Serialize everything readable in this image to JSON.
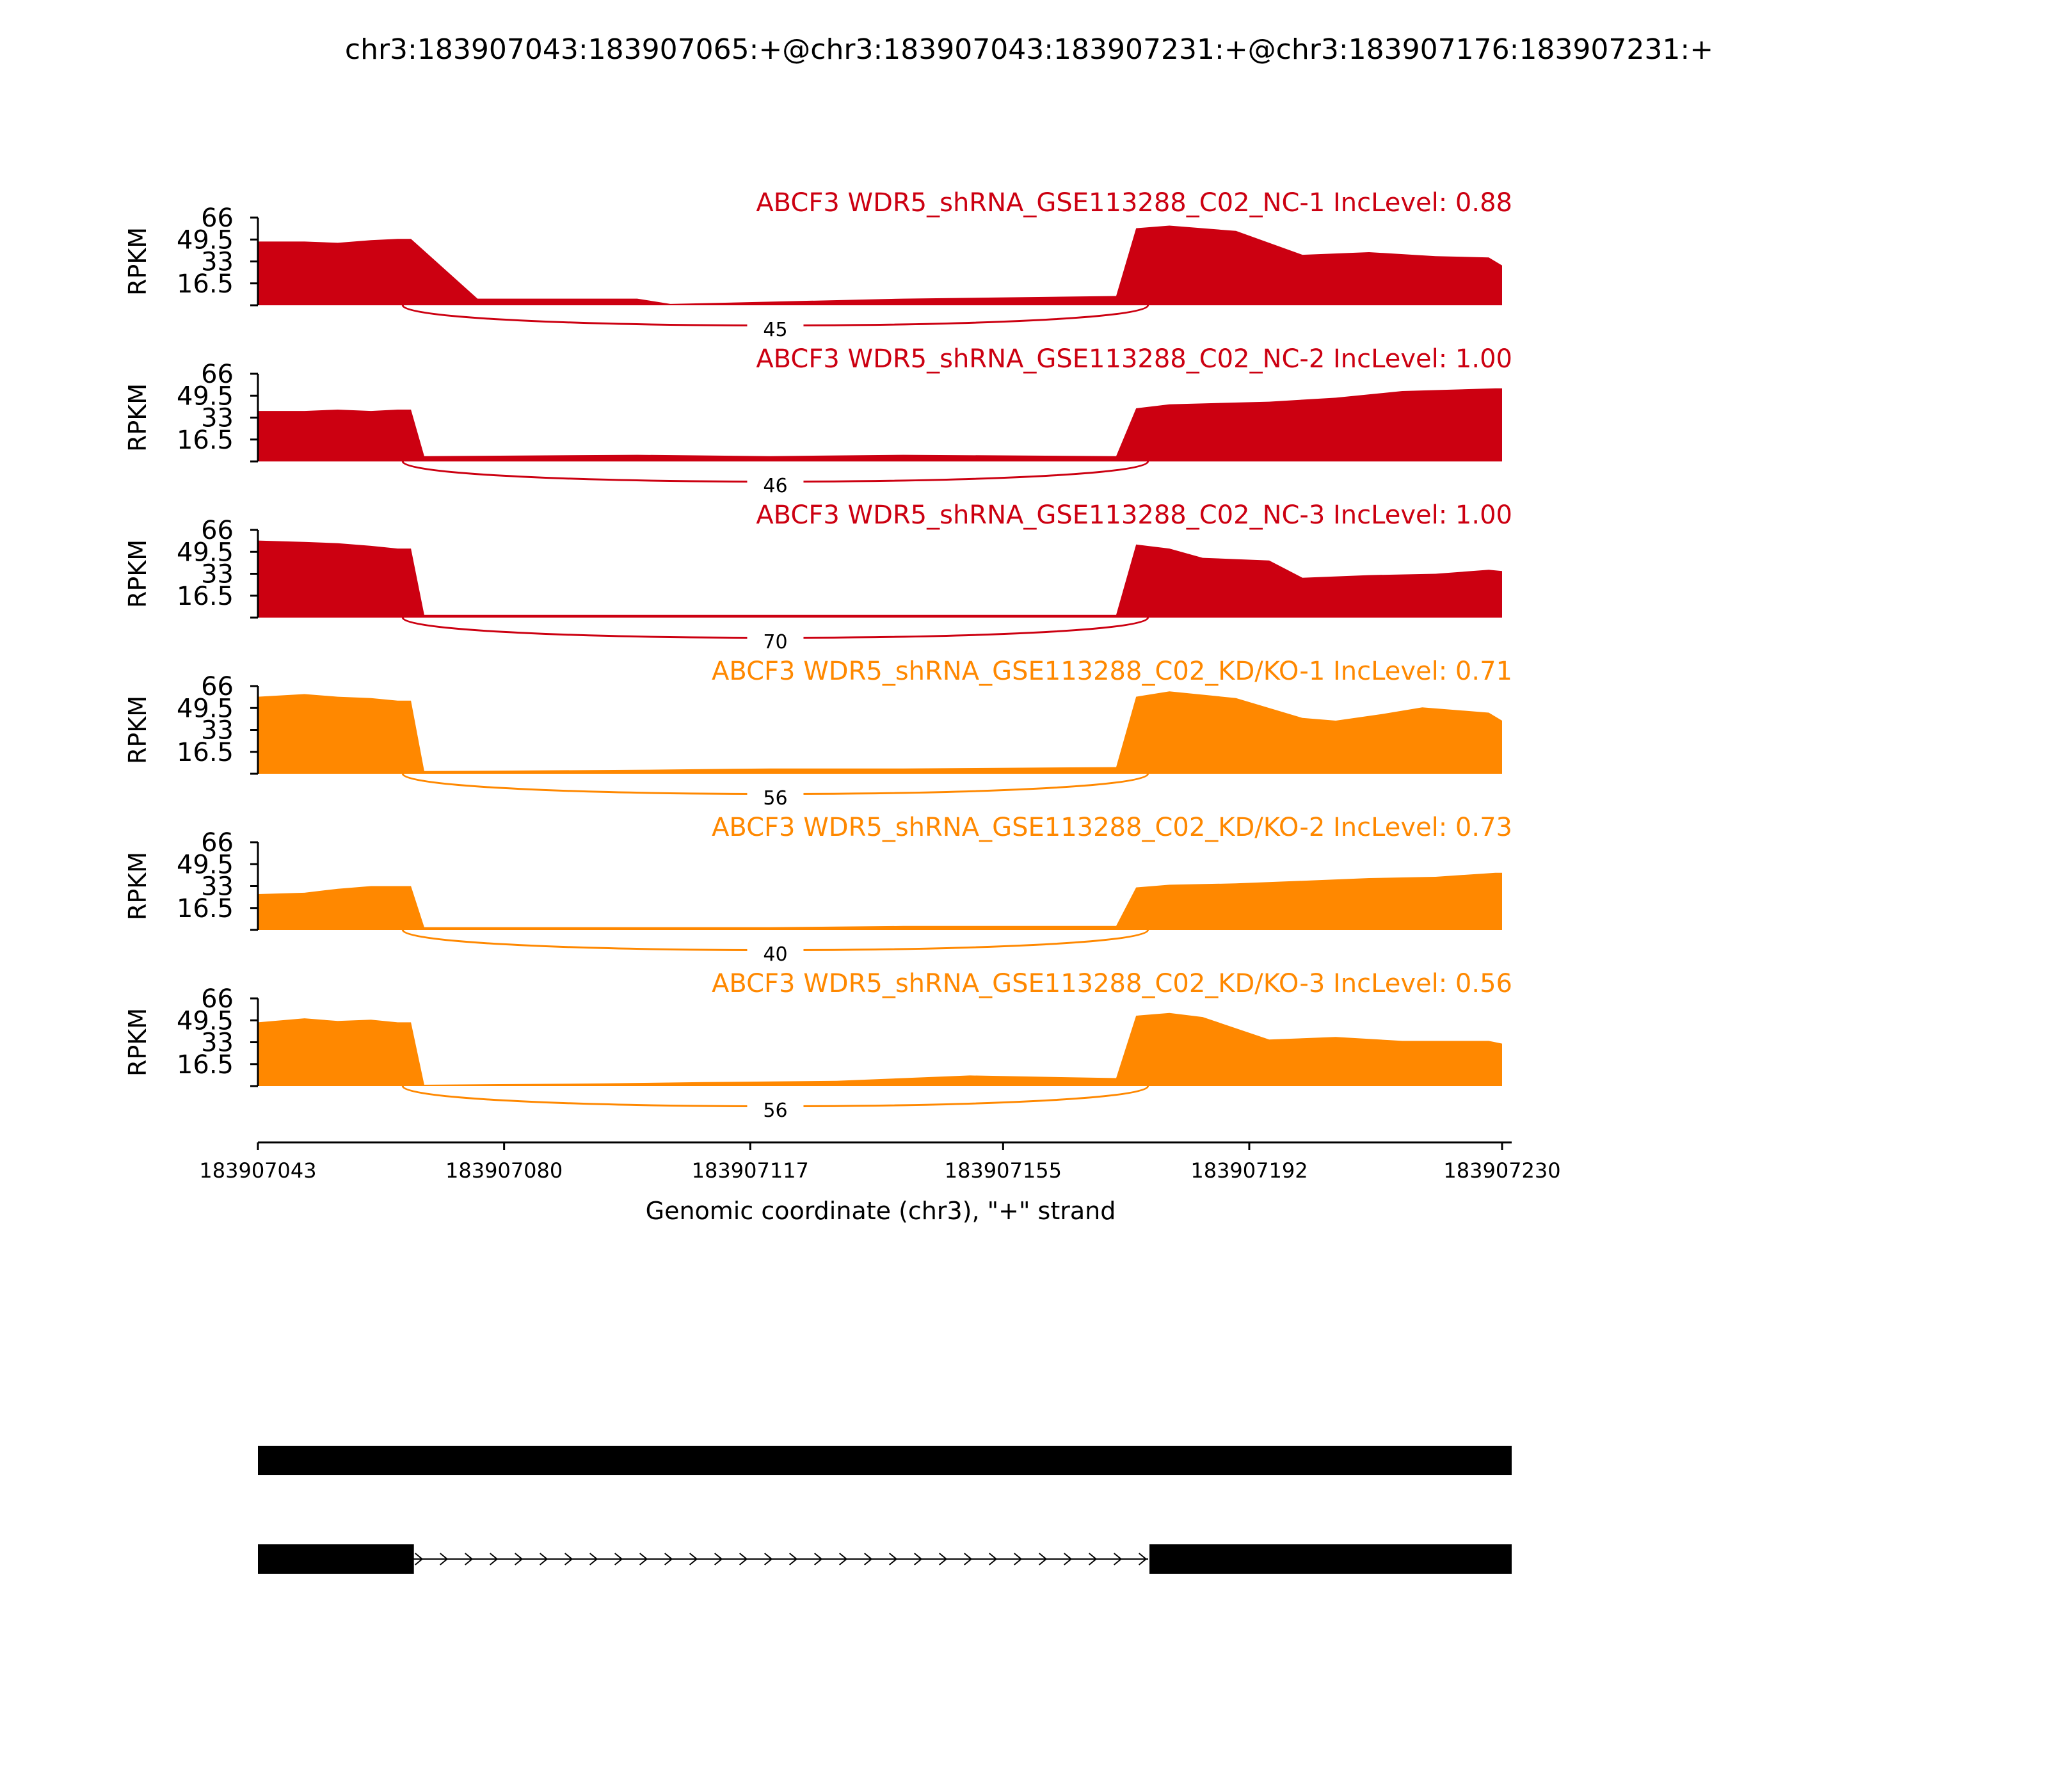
{
  "chart_data": {
    "type": "area",
    "title": "chr3:183907043:183907065:+@chr3:183907043:183907231:+@chr3:183907176:183907231:+",
    "xlabel": "Genomic coordinate (chr3), \"+\" strand",
    "xlim": [
      183907043,
      183907230
    ],
    "xticks": [
      183907043,
      183907080,
      183907117,
      183907155,
      183907192,
      183907230
    ],
    "ylabel": "RPKM",
    "ylim": [
      0,
      66
    ],
    "yticks": [
      16.5,
      33,
      49.5,
      66
    ],
    "exon1_end": 183907064,
    "exon2_start": 183907176,
    "series": [
      {
        "name": "ABCF3 WDR5_shRNA_GSE113288_C02_NC-1 IncLevel: 0.88",
        "color": "#cc0011",
        "junction_count": "45",
        "profile": [
          [
            183907043,
            48
          ],
          [
            183907050,
            48
          ],
          [
            183907055,
            47
          ],
          [
            183907060,
            49
          ],
          [
            183907064,
            50
          ],
          [
            183907066,
            50
          ],
          [
            183907076,
            5
          ],
          [
            183907100,
            5
          ],
          [
            183907105,
            1
          ],
          [
            183907140,
            5
          ],
          [
            183907172,
            7
          ],
          [
            183907175,
            58
          ],
          [
            183907180,
            60
          ],
          [
            183907190,
            56
          ],
          [
            183907200,
            38
          ],
          [
            183907210,
            40
          ],
          [
            183907220,
            37
          ],
          [
            183907228,
            36
          ],
          [
            183907230,
            30
          ]
        ]
      },
      {
        "name": "ABCF3 WDR5_shRNA_GSE113288_C02_NC-2 IncLevel: 1.00",
        "color": "#cc0011",
        "junction_count": "46",
        "profile": [
          [
            183907043,
            38
          ],
          [
            183907050,
            38
          ],
          [
            183907055,
            39
          ],
          [
            183907060,
            38
          ],
          [
            183907064,
            39
          ],
          [
            183907066,
            39
          ],
          [
            183907068,
            4
          ],
          [
            183907100,
            5
          ],
          [
            183907120,
            4
          ],
          [
            183907140,
            5
          ],
          [
            183907172,
            4
          ],
          [
            183907175,
            40
          ],
          [
            183907180,
            43
          ],
          [
            183907195,
            45
          ],
          [
            183907205,
            48
          ],
          [
            183907215,
            53
          ],
          [
            183907229,
            55
          ],
          [
            183907230,
            55
          ]
        ]
      },
      {
        "name": "ABCF3 WDR5_shRNA_GSE113288_C02_NC-3 IncLevel: 1.00",
        "color": "#cc0011",
        "junction_count": "70",
        "profile": [
          [
            183907043,
            58
          ],
          [
            183907050,
            57
          ],
          [
            183907055,
            56
          ],
          [
            183907060,
            54
          ],
          [
            183907064,
            52
          ],
          [
            183907066,
            52
          ],
          [
            183907068,
            2
          ],
          [
            183907100,
            2
          ],
          [
            183907120,
            2
          ],
          [
            183907140,
            2
          ],
          [
            183907172,
            2
          ],
          [
            183907175,
            55
          ],
          [
            183907180,
            52
          ],
          [
            183907185,
            45
          ],
          [
            183907195,
            43
          ],
          [
            183907200,
            30
          ],
          [
            183907210,
            32
          ],
          [
            183907220,
            33
          ],
          [
            183907228,
            36
          ],
          [
            183907230,
            35
          ]
        ]
      },
      {
        "name": "ABCF3 WDR5_shRNA_GSE113288_C02_KD/KO-1 IncLevel: 0.71",
        "color": "#ff8800",
        "junction_count": "56",
        "profile": [
          [
            183907043,
            58
          ],
          [
            183907050,
            60
          ],
          [
            183907055,
            58
          ],
          [
            183907060,
            57
          ],
          [
            183907064,
            55
          ],
          [
            183907066,
            55
          ],
          [
            183907068,
            2
          ],
          [
            183907100,
            3
          ],
          [
            183907120,
            4
          ],
          [
            183907140,
            4
          ],
          [
            183907172,
            5
          ],
          [
            183907175,
            58
          ],
          [
            183907180,
            62
          ],
          [
            183907190,
            57
          ],
          [
            183907200,
            42
          ],
          [
            183907205,
            40
          ],
          [
            183907212,
            45
          ],
          [
            183907218,
            50
          ],
          [
            183907228,
            46
          ],
          [
            183907230,
            40
          ]
        ]
      },
      {
        "name": "ABCF3 WDR5_shRNA_GSE113288_C02_KD/KO-2 IncLevel: 0.73",
        "color": "#ff8800",
        "junction_count": "40",
        "profile": [
          [
            183907043,
            27
          ],
          [
            183907050,
            28
          ],
          [
            183907055,
            31
          ],
          [
            183907060,
            33
          ],
          [
            183907064,
            33
          ],
          [
            183907066,
            33
          ],
          [
            183907068,
            2
          ],
          [
            183907100,
            2
          ],
          [
            183907120,
            2
          ],
          [
            183907140,
            3
          ],
          [
            183907172,
            3
          ],
          [
            183907175,
            32
          ],
          [
            183907180,
            34
          ],
          [
            183907190,
            35
          ],
          [
            183907200,
            37
          ],
          [
            183907210,
            39
          ],
          [
            183907220,
            40
          ],
          [
            183907229,
            43
          ],
          [
            183907230,
            43
          ]
        ]
      },
      {
        "name": "ABCF3 WDR5_shRNA_GSE113288_C02_KD/KO-3 IncLevel: 0.56",
        "color": "#ff8800",
        "junction_count": "56",
        "profile": [
          [
            183907043,
            48
          ],
          [
            183907050,
            51
          ],
          [
            183907055,
            49
          ],
          [
            183907060,
            50
          ],
          [
            183907064,
            48
          ],
          [
            183907066,
            48
          ],
          [
            183907068,
            1
          ],
          [
            183907095,
            2
          ],
          [
            183907110,
            3
          ],
          [
            183907130,
            4
          ],
          [
            183907150,
            8
          ],
          [
            183907172,
            6
          ],
          [
            183907175,
            53
          ],
          [
            183907180,
            55
          ],
          [
            183907185,
            52
          ],
          [
            183907195,
            35
          ],
          [
            183907205,
            37
          ],
          [
            183907215,
            34
          ],
          [
            183907228,
            34
          ],
          [
            183907230,
            32
          ]
        ]
      }
    ],
    "isoforms": [
      {
        "exons": [
          [
            183907043,
            183907230
          ]
        ]
      },
      {
        "exons": [
          [
            183907043,
            183907065
          ],
          [
            183907177,
            183907230
          ]
        ]
      }
    ]
  }
}
